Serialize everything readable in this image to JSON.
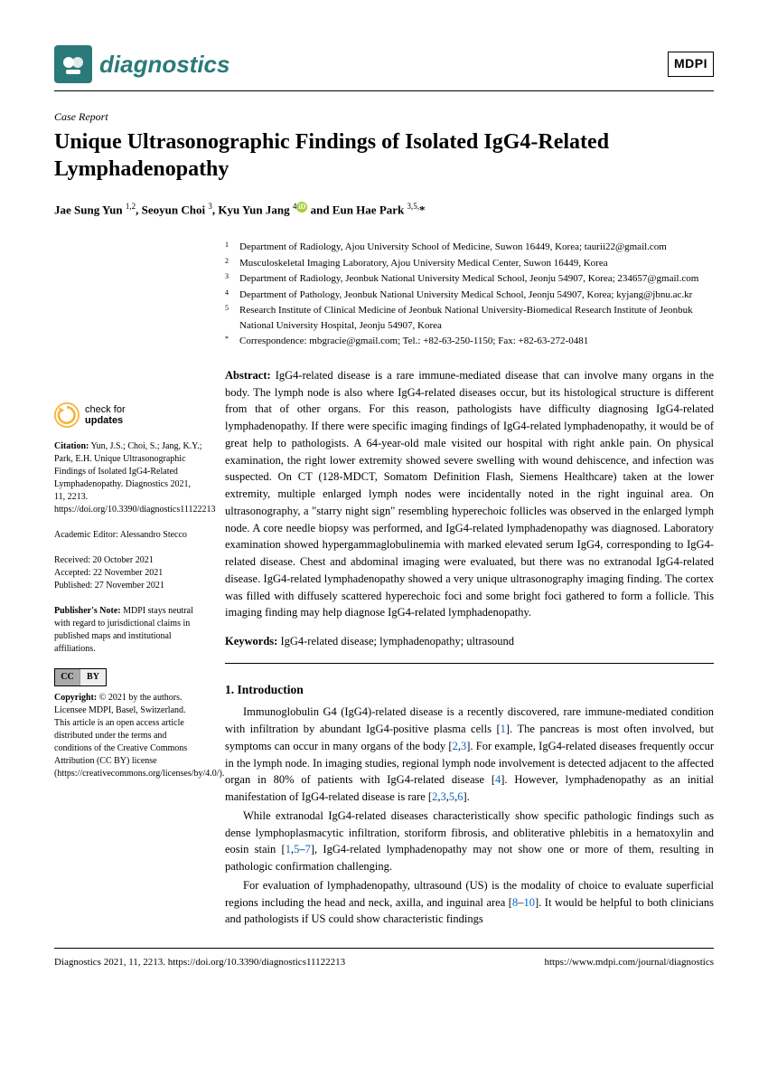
{
  "journal": {
    "name": "diagnostics",
    "publisher_badge": "MDPI"
  },
  "article_type": "Case Report",
  "title": "Unique Ultrasonographic Findings of Isolated IgG4-Related Lymphadenopathy",
  "authors_html": "Jae Sung Yun <sup>1,2</sup>, Seoyun Choi <sup>3</sup>, Kyu Yun Jang <sup>4</sup><span class='orcid'>iD</span> and Eun Hae Park <sup>3,5,</sup>*",
  "affiliations": [
    {
      "n": "1",
      "text": "Department of Radiology, Ajou University School of Medicine, Suwon 16449, Korea; taurii22@gmail.com"
    },
    {
      "n": "2",
      "text": "Musculoskeletal Imaging Laboratory, Ajou University Medical Center, Suwon 16449, Korea"
    },
    {
      "n": "3",
      "text": "Department of Radiology, Jeonbuk National University Medical School, Jeonju 54907, Korea; 234657@gmail.com"
    },
    {
      "n": "4",
      "text": "Department of Pathology, Jeonbuk National University Medical School, Jeonju 54907, Korea; kyjang@jbnu.ac.kr"
    },
    {
      "n": "5",
      "text": "Research Institute of Clinical Medicine of Jeonbuk National University-Biomedical Research Institute of Jeonbuk National University Hospital, Jeonju 54907, Korea"
    },
    {
      "n": "*",
      "text": "Correspondence: mbgracie@gmail.com; Tel.: +82-63-250-1150; Fax: +82-63-272-0481"
    }
  ],
  "abstract_label": "Abstract:",
  "abstract": "IgG4-related disease is a rare immune-mediated disease that can involve many organs in the body. The lymph node is also where IgG4-related diseases occur, but its histological structure is different from that of other organs. For this reason, pathologists have difficulty diagnosing IgG4-related lymphadenopathy. If there were specific imaging findings of IgG4-related lymphadenopathy, it would be of great help to pathologists. A 64-year-old male visited our hospital with right ankle pain. On physical examination, the right lower extremity showed severe swelling with wound dehiscence, and infection was suspected. On CT (128-MDCT, Somatom Definition Flash, Siemens Healthcare) taken at the lower extremity, multiple enlarged lymph nodes were incidentally noted in the right inguinal area. On ultrasonography, a \"starry night sign\" resembling hyperechoic follicles was observed in the enlarged lymph node. A core needle biopsy was performed, and IgG4-related lymphadenopathy was diagnosed. Laboratory examination showed hypergammaglobulinemia with marked elevated serum IgG4, corresponding to IgG4-related disease. Chest and abdominal imaging were evaluated, but there was no extranodal IgG4-related disease. IgG4-related lymphadenopathy showed a very unique ultrasonography imaging finding. The cortex was filled with diffusely scattered hyperechoic foci and some bright foci gathered to form a follicle. This imaging finding may help diagnose IgG4-related lymphadenopathy.",
  "keywords_label": "Keywords:",
  "keywords": "IgG4-related disease; lymphadenopathy; ultrasound",
  "section1_heading": "1. Introduction",
  "check_updates": {
    "line1": "check for",
    "line2": "updates"
  },
  "citation_label": "Citation:",
  "citation": "Yun, J.S.; Choi, S.; Jang, K.Y.; Park, E.H. Unique Ultrasonographic Findings of Isolated IgG4-Related Lymphadenopathy. Diagnostics 2021, 11, 2213. https://doi.org/10.3390/diagnostics11122213",
  "editor_label": "Academic Editor:",
  "editor": "Alessandro Stecco",
  "dates": {
    "received": "Received: 20 October 2021",
    "accepted": "Accepted: 22 November 2021",
    "published": "Published: 27 November 2021"
  },
  "publishers_note_label": "Publisher's Note:",
  "publishers_note": "MDPI stays neutral with regard to jurisdictional claims in published maps and institutional affiliations.",
  "copyright_label": "Copyright:",
  "copyright": "© 2021 by the authors. Licensee MDPI, Basel, Switzerland. This article is an open access article distributed under the terms and conditions of the Creative Commons Attribution (CC BY) license (https://creativecommons.org/licenses/by/4.0/).",
  "footer": {
    "left": "Diagnostics 2021, 11, 2213. https://doi.org/10.3390/diagnostics11122213",
    "right": "https://www.mdpi.com/journal/diagnostics"
  },
  "colors": {
    "brand": "#2a7a7a",
    "link": "#0066cc",
    "orcid": "#a6ce39"
  }
}
